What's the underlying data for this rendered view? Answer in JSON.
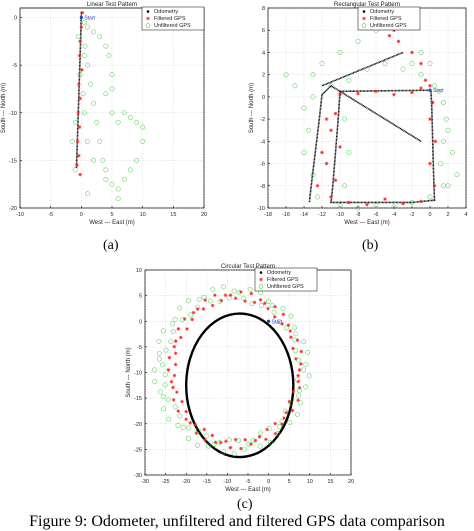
{
  "panel_labels": [
    "(a)",
    "(b)",
    "(c)"
  ],
  "caption": "Figure 9: Odometer, unfiltered and filtered GPS data comparison",
  "colors": {
    "odometry": "#000000",
    "filtered": "#ff2020",
    "unfiltered": "#33cc33",
    "annotation": "#1f3fbf"
  },
  "chart_data": [
    {
      "type": "scatter",
      "title": "Linear Test Pattern",
      "xlabel": "West --- East (m)",
      "ylabel": "South --- North (m)",
      "xlim": [
        -10,
        20
      ],
      "ylim": [
        -20,
        1
      ],
      "xticks": [
        -10,
        -5,
        0,
        5,
        10,
        15,
        20
      ],
      "yticks": [
        0,
        -5,
        -10,
        -15,
        -20
      ],
      "grid": true,
      "legend_position": "top-right",
      "legend": [
        "Odometry",
        "Filtered GPS",
        "Unfiltered GPS"
      ],
      "annotations": [
        {
          "text": "Start",
          "x": 0,
          "y": 0
        }
      ],
      "series": [
        {
          "name": "Odometry",
          "marker": "dot",
          "points": [
            [
              0,
              0.6
            ],
            [
              -0.1,
              -2
            ],
            [
              -0.2,
              -4
            ],
            [
              -0.3,
              -6
            ],
            [
              -0.4,
              -8
            ],
            [
              -0.5,
              -10
            ],
            [
              -0.6,
              -12
            ],
            [
              -0.7,
              -14
            ],
            [
              -0.8,
              -15.8
            ]
          ]
        },
        {
          "name": "Filtered GPS",
          "marker": "star",
          "points": [
            [
              0.2,
              0.5
            ],
            [
              0,
              -1
            ],
            [
              -0.2,
              -2.5
            ],
            [
              -0.3,
              -4
            ],
            [
              0.1,
              -5.5
            ],
            [
              -0.4,
              -7
            ],
            [
              -0.2,
              -8.5
            ],
            [
              -0.5,
              -10
            ],
            [
              -0.3,
              -11.5
            ],
            [
              -0.6,
              -13
            ],
            [
              -0.4,
              -14.5
            ],
            [
              -0.7,
              -15.5
            ],
            [
              -0.2,
              -16.5
            ]
          ]
        },
        {
          "name": "Unfiltered GPS",
          "marker": "circle",
          "points": [
            [
              0.5,
              -0.5
            ],
            [
              1,
              -1
            ],
            [
              2,
              -1.5
            ],
            [
              3,
              -2
            ],
            [
              4,
              -3
            ],
            [
              4.5,
              -4
            ],
            [
              5,
              -6
            ],
            [
              5,
              -7.5
            ],
            [
              4,
              -8
            ],
            [
              5,
              -10
            ],
            [
              6,
              -11
            ],
            [
              7,
              -10
            ],
            [
              8,
              -10.5
            ],
            [
              9,
              -11
            ],
            [
              10,
              -11.5
            ],
            [
              10,
              -13
            ],
            [
              9,
              -15
            ],
            [
              8,
              -16
            ],
            [
              7,
              -17
            ],
            [
              6,
              -18
            ],
            [
              4,
              -17
            ],
            [
              2,
              -15
            ],
            [
              1,
              -13
            ],
            [
              0.5,
              -10
            ],
            [
              0.3,
              -8
            ],
            [
              -0.2,
              -6
            ],
            [
              0.5,
              -4
            ],
            [
              1,
              -5
            ],
            [
              1.5,
              -7
            ],
            [
              2,
              -9
            ],
            [
              2.5,
              -11
            ],
            [
              3,
              -13
            ],
            [
              3.5,
              -15
            ],
            [
              4,
              -16
            ],
            [
              5,
              -17.5
            ],
            [
              6,
              -19
            ],
            [
              1,
              -18.5
            ],
            [
              -1,
              -16
            ],
            [
              -1.5,
              -13
            ],
            [
              -1,
              -11
            ],
            [
              0.6,
              -3
            ],
            [
              -0.5,
              -2
            ]
          ]
        }
      ]
    },
    {
      "type": "scatter",
      "title": "Rectangular Test Pattern",
      "xlabel": "West --- East (m)",
      "ylabel": "South --- North (m)",
      "xlim": [
        -18,
        4
      ],
      "ylim": [
        -10,
        8
      ],
      "xticks": [
        -18,
        -16,
        -14,
        -12,
        -10,
        -8,
        -6,
        -4,
        -2,
        0,
        2,
        4
      ],
      "yticks": [
        8,
        6,
        4,
        2,
        0,
        -2,
        -4,
        -6,
        -8,
        -10
      ],
      "grid": true,
      "legend_position": "top-left",
      "legend": [
        "Odometry",
        "Filtered GPS",
        "Unfiltered GPS"
      ],
      "annotations": [
        {
          "text": "Start",
          "x": 0,
          "y": 0.6
        }
      ],
      "series": [
        {
          "name": "Odometry",
          "marker": "dot",
          "points": [
            [
              0.1,
              0.6
            ],
            [
              -2,
              0.58
            ],
            [
              -4,
              0.56
            ],
            [
              -6,
              0.54
            ],
            [
              -8,
              0.52
            ],
            [
              -10,
              0.5
            ],
            [
              -10.2,
              -2
            ],
            [
              -10.4,
              -4
            ],
            [
              -10.6,
              -6
            ],
            [
              -10.8,
              -8
            ],
            [
              -11,
              -9.5
            ],
            [
              -8,
              -9.5
            ],
            [
              -5,
              -9.5
            ],
            [
              -2,
              -9.5
            ],
            [
              0.5,
              -9.3
            ],
            [
              0.4,
              -7
            ],
            [
              0.3,
              -4
            ],
            [
              0.2,
              -1
            ],
            [
              0.1,
              0.6
            ]
          ]
        },
        {
          "name": "Odometry",
          "marker": "dot",
          "points": [
            [
              -1,
              -4
            ],
            [
              -3,
              -3
            ],
            [
              -5,
              -2
            ],
            [
              -7,
              -1
            ],
            [
              -9,
              0
            ],
            [
              -11,
              1
            ],
            [
              -12,
              0.2
            ],
            [
              -12.3,
              -2
            ],
            [
              -12.6,
              -4
            ],
            [
              -12.9,
              -6
            ],
            [
              -13.2,
              -8
            ],
            [
              -13.4,
              -9.5
            ]
          ]
        },
        {
          "name": "Odometry",
          "marker": "dot",
          "points": [
            [
              -12,
              1
            ],
            [
              -9,
              2
            ],
            [
              -6,
              3
            ],
            [
              -3,
              4
            ]
          ]
        },
        {
          "name": "Filtered GPS",
          "marker": "star",
          "points": [
            [
              0,
              1
            ],
            [
              -1,
              0.8
            ],
            [
              -2,
              0.4
            ],
            [
              -4,
              0.2
            ],
            [
              -6,
              0.5
            ],
            [
              -8,
              0.3
            ],
            [
              -10,
              0.2
            ],
            [
              -10.5,
              -1.5
            ],
            [
              -11,
              -3
            ],
            [
              -10,
              -4.5
            ],
            [
              -11.5,
              -6
            ],
            [
              -10.5,
              -7.5
            ],
            [
              -11,
              -9
            ],
            [
              -9,
              -9.5
            ],
            [
              -7,
              -9.7
            ],
            [
              -5,
              -9.2
            ],
            [
              -3,
              -9.6
            ],
            [
              -1,
              -9.4
            ],
            [
              0.5,
              -8
            ],
            [
              0,
              -6
            ],
            [
              0.6,
              -4
            ],
            [
              0,
              -2
            ],
            [
              0.3,
              -0.5
            ],
            [
              -0.5,
              1.5
            ],
            [
              -1,
              3
            ],
            [
              -2,
              4
            ],
            [
              -3.5,
              5
            ],
            [
              -4,
              6
            ],
            [
              -4.5,
              5.5
            ],
            [
              -12,
              -5
            ],
            [
              -12.5,
              -8
            ],
            [
              -11.5,
              -2
            ]
          ]
        },
        {
          "name": "Unfiltered GPS",
          "marker": "circle",
          "points": [
            [
              0.5,
              1
            ],
            [
              1,
              0.5
            ],
            [
              1.5,
              -0.5
            ],
            [
              1.8,
              -2
            ],
            [
              1.5,
              -4
            ],
            [
              1.2,
              -6
            ],
            [
              1.5,
              -8
            ],
            [
              2.5,
              -5
            ],
            [
              2,
              -3
            ],
            [
              -1,
              2
            ],
            [
              -2,
              3
            ],
            [
              -3,
              2.5
            ],
            [
              -5,
              3
            ],
            [
              -7,
              2.5
            ],
            [
              -9,
              1.5
            ],
            [
              -11,
              1
            ],
            [
              -13,
              0
            ],
            [
              -14,
              -1
            ],
            [
              -13.5,
              -3
            ],
            [
              -14,
              -5
            ],
            [
              -13,
              -7
            ],
            [
              -12.5,
              -9
            ],
            [
              -10,
              -9.8
            ],
            [
              -8,
              -10
            ],
            [
              -6,
              -9.8
            ],
            [
              -4,
              -9.9
            ],
            [
              -2,
              -9.5
            ],
            [
              0,
              -9
            ],
            [
              2,
              -8
            ],
            [
              3,
              -7
            ],
            [
              -15,
              1
            ],
            [
              -16,
              2
            ],
            [
              -12,
              3
            ],
            [
              -10,
              4
            ],
            [
              -8,
              5
            ],
            [
              -6,
              6
            ],
            [
              -5,
              7
            ],
            [
              -3,
              6.5
            ],
            [
              -1,
              4
            ],
            [
              0,
              3
            ],
            [
              -13,
              2
            ],
            [
              -9.5,
              -2
            ],
            [
              -9,
              -5
            ],
            [
              -9.5,
              -8
            ]
          ]
        }
      ]
    },
    {
      "type": "scatter",
      "title": "Circular Test Pattern",
      "xlabel": "West --- East (m)",
      "ylabel": "South --- North (m)",
      "xlim": [
        -30,
        20
      ],
      "ylim": [
        -30,
        10
      ],
      "xticks": [
        -30,
        -25,
        -20,
        -15,
        -10,
        -5,
        0,
        5,
        10,
        15,
        20
      ],
      "yticks": [
        10,
        5,
        0,
        -5,
        -10,
        -15,
        -20,
        -25,
        -30
      ],
      "grid": true,
      "legend_position": "top-right",
      "legend": [
        "Odometry",
        "Filtered GPS",
        "Unfiltered GPS"
      ],
      "annotations": [
        {
          "text": "Start",
          "x": 0,
          "y": 0
        }
      ],
      "series": [
        {
          "name": "Odometry",
          "marker": "line",
          "cx": -7,
          "cy": -12.5,
          "rx": 13,
          "ry": 14
        },
        {
          "name": "Filtered GPS",
          "marker": "star",
          "cx": -8,
          "cy": -9.5,
          "rx": 15.5,
          "ry": 14.5,
          "count": 80
        },
        {
          "name": "Unfiltered GPS",
          "marker": "circle",
          "cx": -9,
          "cy": -9.5,
          "rx": 17.5,
          "ry": 15,
          "count": 90
        }
      ]
    }
  ]
}
